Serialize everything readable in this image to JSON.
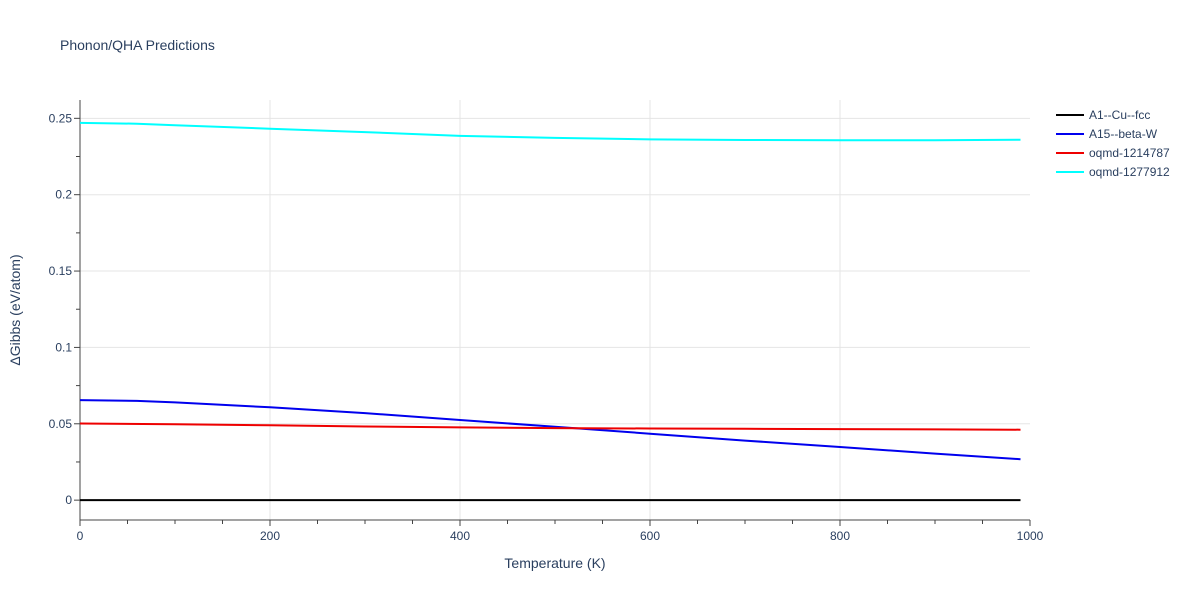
{
  "chart_data": {
    "type": "line",
    "title": "Phonon/QHA Predictions",
    "xlabel": "Temperature (K)",
    "ylabel": "ΔGibbs (eV/atom)",
    "xlim": [
      0,
      1000
    ],
    "ylim": [
      -0.013,
      0.262
    ],
    "xticks": [
      0,
      200,
      400,
      600,
      800,
      1000
    ],
    "xtick_labels": [
      "0",
      "200",
      "400",
      "600",
      "800",
      "1000"
    ],
    "yticks": [
      0,
      0.05,
      0.1,
      0.15,
      0.2,
      0.25
    ],
    "ytick_labels": [
      "0",
      "0.05",
      "0.1",
      "0.15",
      "0.2",
      "0.25"
    ],
    "grid": true,
    "legend_position": "top-right",
    "series": [
      {
        "name": "A1--Cu--fcc",
        "color": "#000000",
        "x": [
          0,
          100,
          200,
          300,
          400,
          500,
          600,
          700,
          800,
          900,
          990
        ],
        "y": [
          0,
          0,
          0,
          0,
          0,
          0,
          0,
          0,
          0,
          0,
          0
        ]
      },
      {
        "name": "A15--beta-W",
        "color": "#0000ee",
        "x": [
          0,
          60,
          100,
          200,
          300,
          400,
          500,
          600,
          700,
          800,
          900,
          990
        ],
        "y": [
          0.0655,
          0.065,
          0.064,
          0.0608,
          0.057,
          0.0525,
          0.048,
          0.0435,
          0.039,
          0.0348,
          0.0305,
          0.0268
        ]
      },
      {
        "name": "oqmd-1214787",
        "color": "#ee0000",
        "x": [
          0,
          100,
          200,
          300,
          400,
          500,
          600,
          700,
          800,
          900,
          990
        ],
        "y": [
          0.0502,
          0.0497,
          0.049,
          0.0482,
          0.0476,
          0.0472,
          0.0469,
          0.0467,
          0.0465,
          0.0463,
          0.0461
        ]
      },
      {
        "name": "oqmd-1277912",
        "color": "#00ffff",
        "x": [
          0,
          60,
          100,
          200,
          300,
          400,
          500,
          600,
          700,
          800,
          900,
          990
        ],
        "y": [
          0.247,
          0.2465,
          0.2455,
          0.2432,
          0.241,
          0.2385,
          0.2372,
          0.2362,
          0.2358,
          0.2357,
          0.2357,
          0.236
        ]
      }
    ]
  }
}
